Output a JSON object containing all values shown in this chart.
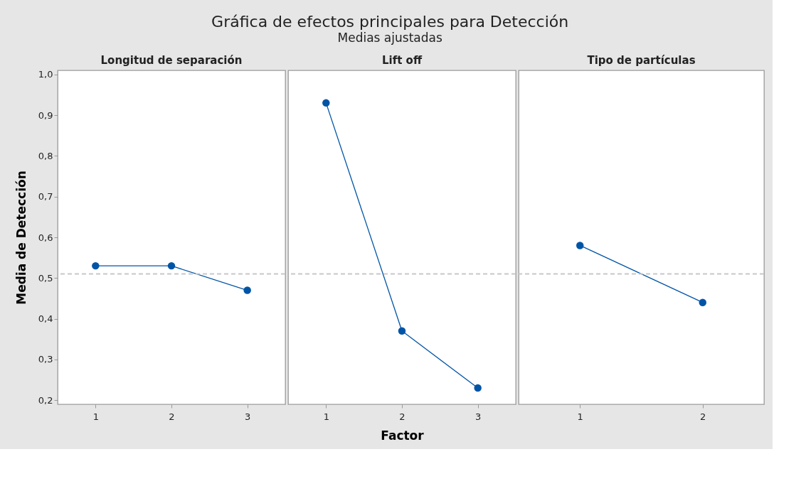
{
  "chart_data": [
    {
      "type": "line",
      "title": "Longitud de separación",
      "annotations": [
        "Gráfica de efectos principales para Detección",
        "Medias ajustadas"
      ],
      "ylabel": "Media de Detección",
      "categories": [
        "1",
        "2",
        "3"
      ],
      "series": [
        {
          "color": "#0054a6",
          "values": [
            0.53,
            0.53,
            0.47
          ]
        }
      ],
      "ylim": [
        0.19,
        1.01
      ],
      "yticks": [
        {
          "value": 0.2,
          "label": "0,2"
        },
        {
          "value": 0.3,
          "label": "0,3"
        },
        {
          "value": 0.4,
          "label": "0,4"
        },
        {
          "value": 0.5,
          "label": "0,5"
        },
        {
          "value": 0.6,
          "label": "0,6"
        },
        {
          "value": 0.7,
          "label": "0,7"
        },
        {
          "value": 0.8,
          "label": "0,8"
        },
        {
          "value": 0.9,
          "label": "0,9"
        },
        {
          "value": 1.0,
          "label": "1,0"
        }
      ],
      "ref_lines": [
        {
          "axis": "y",
          "value": 0.51,
          "color": "#c8c8c8",
          "line_style": "dashed"
        }
      ],
      "marker": "circle",
      "line_style": "solid",
      "grid": false
    },
    {
      "type": "line",
      "title": "Lift off",
      "xlabel": "Factor",
      "categories": [
        "1",
        "2",
        "3"
      ],
      "series": [
        {
          "color": "#0054a6",
          "values": [
            0.93,
            0.37,
            0.23
          ]
        }
      ],
      "ylim": [
        0.19,
        1.01
      ],
      "tick_labels": "x",
      "ref_lines": [
        {
          "axis": "y",
          "value": 0.51,
          "color": "#c8c8c8",
          "line_style": "dashed"
        }
      ],
      "marker": "circle",
      "line_style": "solid",
      "grid": false
    },
    {
      "type": "line",
      "title": "Tipo de partículas",
      "categories": [
        "1",
        "2"
      ],
      "series": [
        {
          "color": "#0054a6",
          "values": [
            0.58,
            0.44
          ]
        }
      ],
      "ylim": [
        0.19,
        1.01
      ],
      "tick_labels": "x",
      "ref_lines": [
        {
          "axis": "y",
          "value": 0.51,
          "color": "#c8c8c8",
          "line_style": "dashed"
        }
      ],
      "marker": "circle",
      "line_style": "solid",
      "grid": false
    }
  ]
}
